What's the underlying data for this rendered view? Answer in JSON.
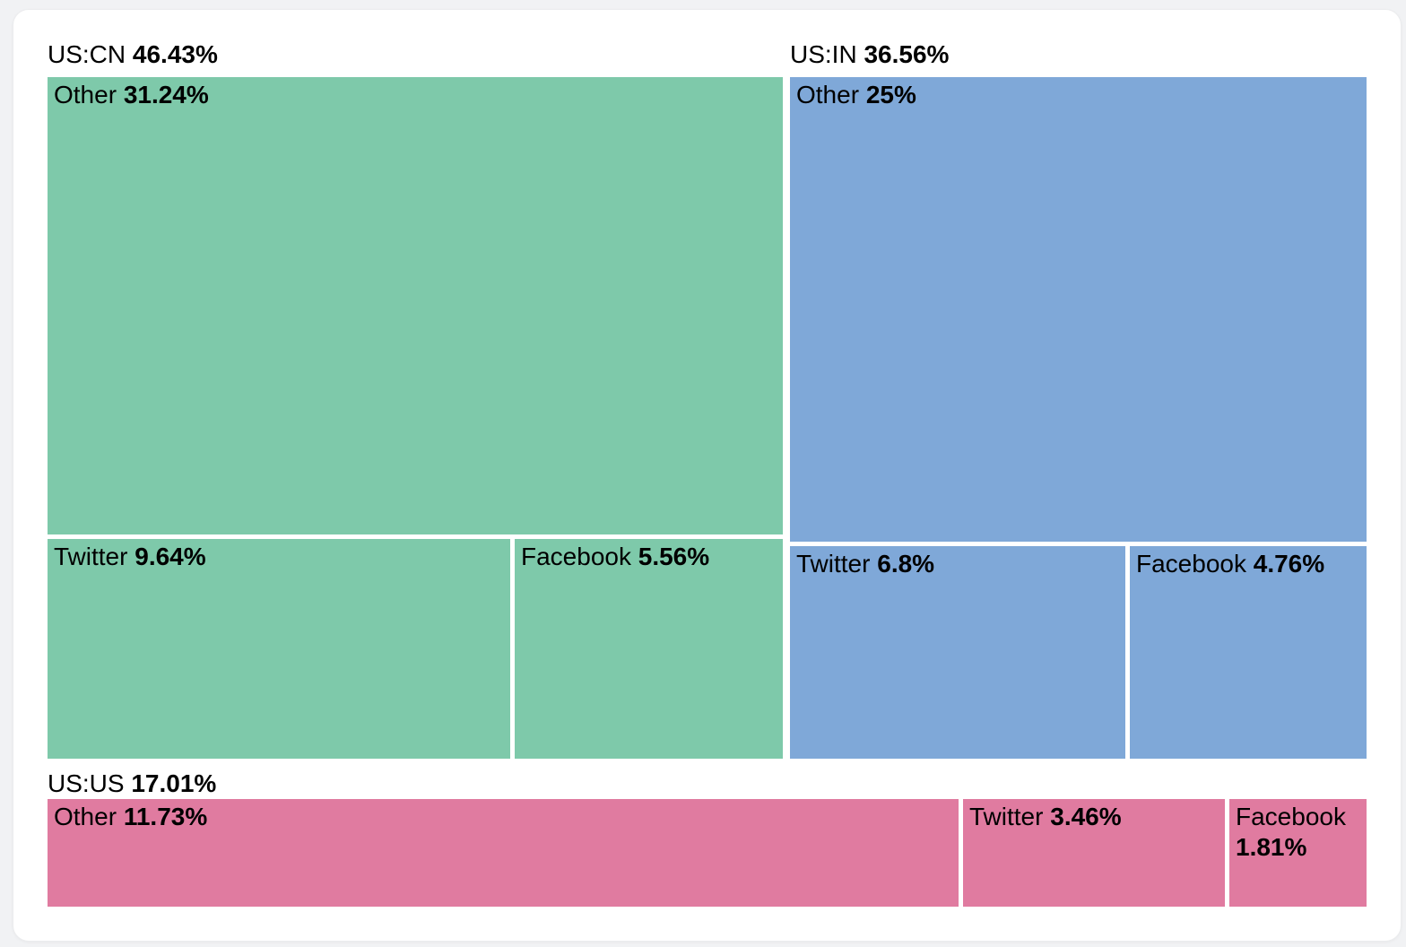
{
  "chart_data": {
    "type": "treemap",
    "title": "",
    "unit": "%",
    "legend": "none",
    "groups": [
      {
        "label": "US:CN",
        "value": 46.43,
        "display": "46.43%",
        "color": "#7ec9aa",
        "children": [
          {
            "label": "Other",
            "value": 31.24,
            "display": "31.24%"
          },
          {
            "label": "Twitter",
            "value": 9.64,
            "display": "9.64%"
          },
          {
            "label": "Facebook",
            "value": 5.56,
            "display": "5.56%"
          }
        ]
      },
      {
        "label": "US:IN",
        "value": 36.56,
        "display": "36.56%",
        "color": "#7fa8d8",
        "children": [
          {
            "label": "Other",
            "value": 25,
            "display": "25%"
          },
          {
            "label": "Twitter",
            "value": 6.8,
            "display": "6.8%"
          },
          {
            "label": "Facebook",
            "value": 4.76,
            "display": "4.76%"
          }
        ]
      },
      {
        "label": "US:US",
        "value": 17.01,
        "display": "17.01%",
        "color": "#e07ba0",
        "children": [
          {
            "label": "Other",
            "value": 11.73,
            "display": "11.73%"
          },
          {
            "label": "Twitter",
            "value": 3.46,
            "display": "3.46%"
          },
          {
            "label": "Facebook",
            "value": 1.81,
            "display": "1.81%"
          }
        ]
      }
    ]
  }
}
